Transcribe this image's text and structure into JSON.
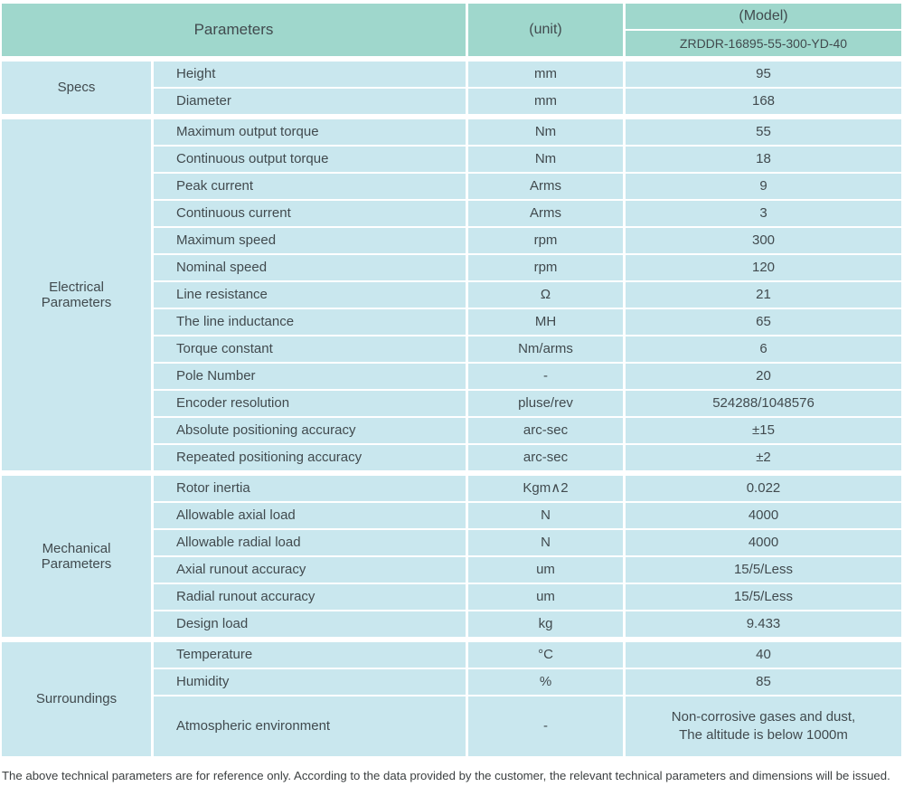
{
  "colors": {
    "header_bg": "#9fd7cc",
    "cell_bg": "#c9e7ee",
    "grid_line": "#ffffff",
    "text": "#414a4e"
  },
  "table": {
    "header": {
      "parameters_label": "Parameters",
      "unit_label": "(unit)",
      "model_label": "(Model)",
      "model_value": "ZRDDR-16895-55-300-YD-40"
    },
    "sections": [
      {
        "category": "Specs",
        "rows": [
          {
            "param": "Height",
            "unit": "mm",
            "value": "95"
          },
          {
            "param": "Diameter",
            "unit": "mm",
            "value": "168"
          }
        ]
      },
      {
        "category": "Electrical Parameters",
        "rows": [
          {
            "param": "Maximum output torque",
            "unit": "Nm",
            "value": "55"
          },
          {
            "param": "Continuous output torque",
            "unit": "Nm",
            "value": "18"
          },
          {
            "param": "Peak current",
            "unit": "Arms",
            "value": "9"
          },
          {
            "param": "Continuous current",
            "unit": "Arms",
            "value": "3"
          },
          {
            "param": "Maximum speed",
            "unit": "rpm",
            "value": "300"
          },
          {
            "param": "Nominal speed",
            "unit": "rpm",
            "value": "120"
          },
          {
            "param": "Line resistance",
            "unit": "Ω",
            "value": "21"
          },
          {
            "param": "The line inductance",
            "unit": "MH",
            "value": "65"
          },
          {
            "param": "Torque constant",
            "unit": "Nm/arms",
            "value": "6"
          },
          {
            "param": "Pole Number",
            "unit": "-",
            "value": "20"
          },
          {
            "param": "Encoder resolution",
            "unit": "pluse/rev",
            "value": "524288/1048576"
          },
          {
            "param": "Absolute positioning accuracy",
            "unit": "arc-sec",
            "value": "±15"
          },
          {
            "param": "Repeated positioning accuracy",
            "unit": "arc-sec",
            "value": "±2"
          }
        ]
      },
      {
        "category": "Mechanical Parameters",
        "rows": [
          {
            "param": "Rotor inertia",
            "unit": "Kgm∧2",
            "value": "0.022"
          },
          {
            "param": "Allowable axial load",
            "unit": "N",
            "value": "4000"
          },
          {
            "param": "Allowable radial load",
            "unit": "N",
            "value": "4000"
          },
          {
            "param": "Axial runout accuracy",
            "unit": "um",
            "value": "15/5/Less"
          },
          {
            "param": "Radial runout accuracy",
            "unit": "um",
            "value": "15/5/Less"
          },
          {
            "param": "Design load",
            "unit": "kg",
            "value": "9.433"
          }
        ]
      },
      {
        "category": "Surroundings",
        "rows": [
          {
            "param": "Temperature",
            "unit": "°C",
            "value": "40"
          },
          {
            "param": "Humidity",
            "unit": "%",
            "value": "85"
          },
          {
            "param": "Atmospheric environment",
            "unit": "-",
            "value": "Non-corrosive gases and dust, The altitude is below 1000m",
            "value_line1": "Non-corrosive gases and dust,",
            "value_line2": "The altitude is below 1000m"
          }
        ]
      }
    ]
  },
  "footer": {
    "note": "The above technical parameters are for reference only. According to the data provided by the customer, the relevant technical parameters and dimensions will be issued."
  }
}
